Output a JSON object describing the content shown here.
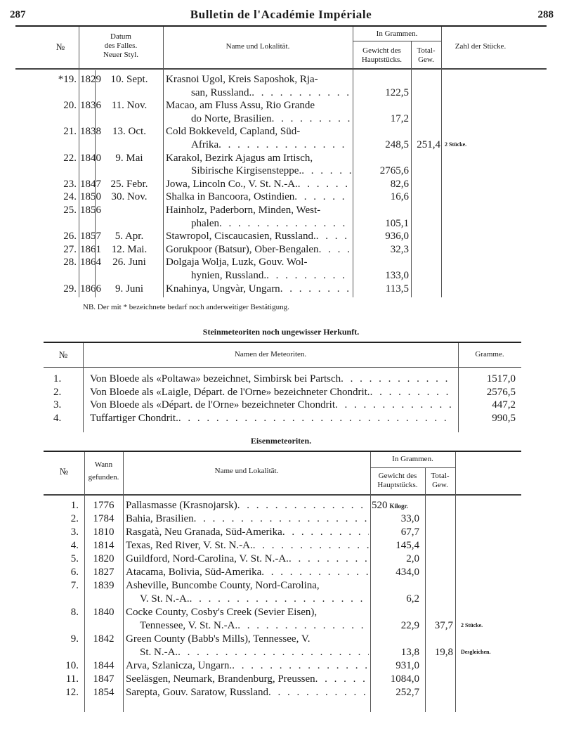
{
  "header": {
    "page_left": "287",
    "title": "Bulletin de l'Académie Impériale",
    "page_right": "288"
  },
  "table1": {
    "headers": {
      "no": "№",
      "date_l1": "Datum",
      "date_l2": "des Falles.",
      "date_l3": "Neuer Styl.",
      "name": "Name und Lokalität.",
      "grams_group": "In Grammen.",
      "main_l1": "Gewicht des",
      "main_l2": "Hauptstücks.",
      "total_l1": "Total-",
      "total_l2": "Gew.",
      "count": "Zahl der Stücke."
    },
    "rows": [
      {
        "no": "*19.",
        "year": "1829",
        "date": "10. Sept.",
        "name": [
          "Krasnoi Ugol, Kreis Saposhok, Rja-",
          "san, Russland."
        ],
        "weight": "122,5",
        "total": "",
        "count": ""
      },
      {
        "no": "20.",
        "year": "1836",
        "date": "11. Nov.",
        "name": [
          "Macao, am Fluss Assu, Rio Grande",
          "do Norte, Brasilien"
        ],
        "weight": "17,2",
        "total": "",
        "count": ""
      },
      {
        "no": "21.",
        "year": "1838",
        "date": "13. Oct.",
        "name": [
          "Cold Bokkeveld, Capland, Süd-",
          "Afrika"
        ],
        "weight": "248,5",
        "total": "251,4",
        "count": "2 Stücke."
      },
      {
        "no": "22.",
        "year": "1840",
        "date": "9. Mai",
        "name": [
          "Karakol, Bezirk Ajagus am Irtisch,",
          "Sibirische Kirgisensteppe."
        ],
        "weight": "2765,6",
        "total": "",
        "count": ""
      },
      {
        "no": "23.",
        "year": "1847",
        "date": "25. Febr.",
        "name": [
          "Jowa, Lincoln Co., V. St. N.-A."
        ],
        "weight": "82,6",
        "total": "",
        "count": ""
      },
      {
        "no": "24.",
        "year": "1850",
        "date": "30. Nov.",
        "name": [
          "Shalka in Bancoora, Ostindien"
        ],
        "weight": "16,6",
        "total": "",
        "count": ""
      },
      {
        "no": "25.",
        "year": "1856",
        "date": "",
        "name": [
          "Hainholz, Paderborn, Minden, West-",
          "phalen"
        ],
        "weight": "105,1",
        "total": "",
        "count": ""
      },
      {
        "no": "26.",
        "year": "1857",
        "date": "5. Apr.",
        "name": [
          "Stawropol, Ciscaucasien, Russland."
        ],
        "weight": "936,0",
        "total": "",
        "count": ""
      },
      {
        "no": "27.",
        "year": "1861",
        "date": "12. Mai.",
        "name": [
          "Gorukpoor (Batsur), Ober-Bengalen"
        ],
        "weight": "32,3",
        "total": "",
        "count": ""
      },
      {
        "no": "28.",
        "year": "1864",
        "date": "26. Juni",
        "name": [
          "Dolgaja Wolja, Luzk, Gouv. Wol-",
          "hynien, Russland."
        ],
        "weight": "133,0",
        "total": "",
        "count": ""
      },
      {
        "no": "29.",
        "year": "1866",
        "date": "9. Juni",
        "name": [
          "Knahinya, Ungvàr, Ungarn"
        ],
        "weight": "113,5",
        "total": "",
        "count": ""
      }
    ],
    "note": "NB. Der mit * bezeichnete bedarf noch anderweitiger Bestätigung."
  },
  "section2": {
    "title": "Steinmeteoriten noch ungewisser Herkunft.",
    "headers": {
      "no": "№",
      "name": "Namen der Meteoriten.",
      "grams": "Gramme."
    },
    "rows": [
      {
        "no": "1.",
        "name": "Von Bloede als «Poltawa» bezeichnet, Simbirsk bei Partsch",
        "grams": "1517,0"
      },
      {
        "no": "2.",
        "name": "Von Bloede als «Laigle, Départ. de l'Orne» bezeichneter Chondrit.",
        "grams": "2576,5"
      },
      {
        "no": "3.",
        "name": "Von Bloede als «Départ. de l'Orne» bezeichneter Chondrit",
        "grams": "447,2"
      },
      {
        "no": "4.",
        "name": "Tuffartiger Chondrit.",
        "grams": "990,5"
      }
    ]
  },
  "section3": {
    "title": "Eisenmeteoriten.",
    "headers": {
      "no": "№",
      "found_l1": "Wann",
      "found_l2": "gefunden.",
      "name": "Name und Lokalität.",
      "grams_group": "In Grammen.",
      "main_l1": "Gewicht des",
      "main_l2": "Hauptstücks.",
      "total_l1": "Total-",
      "total_l2": "Gew."
    },
    "rows": [
      {
        "no": "1.",
        "year": "1776",
        "name": [
          "Pallasmasse (Krasnojarsk)"
        ],
        "weight": "520",
        "unit": "Kilogr.",
        "total": "",
        "count": ""
      },
      {
        "no": "2.",
        "year": "1784",
        "name": [
          "Bahia, Brasilien"
        ],
        "weight": "33,0",
        "total": "",
        "count": ""
      },
      {
        "no": "3.",
        "year": "1810",
        "name": [
          "Rasgatà, Neu Granada, Süd-Amerika"
        ],
        "weight": "67,7",
        "total": "",
        "count": ""
      },
      {
        "no": "4.",
        "year": "1814",
        "name": [
          "Texas, Red River, V. St. N.-A."
        ],
        "weight": "145,4",
        "total": "",
        "count": ""
      },
      {
        "no": "5.",
        "year": "1820",
        "name": [
          "Guildford, Nord-Carolina, V. St. N.-A."
        ],
        "weight": "2,0",
        "total": "",
        "count": ""
      },
      {
        "no": "6.",
        "year": "1827",
        "name": [
          "Atacama, Bolivia, Süd-Amerika"
        ],
        "weight": "434,0",
        "total": "",
        "count": ""
      },
      {
        "no": "7.",
        "year": "1839",
        "name": [
          "Asheville, Buncombe County, Nord-Carolina,",
          "V. St. N.-A."
        ],
        "weight": "6,2",
        "total": "",
        "count": ""
      },
      {
        "no": "8.",
        "year": "1840",
        "name": [
          "Cocke County, Cosby's Creek (Sevier Eisen),",
          "Tennessee, V. St. N.-A."
        ],
        "weight": "22,9",
        "total": "37,7",
        "count": "2 Stücke."
      },
      {
        "no": "9.",
        "year": "1842",
        "name": [
          "Green County (Babb's Mills), Tennessee, V.",
          "St. N.-A."
        ],
        "weight": "13,8",
        "total": "19,8",
        "count": "Desgleichen."
      },
      {
        "no": "10.",
        "year": "1844",
        "name": [
          "Arva, Szlanicza, Ungarn."
        ],
        "weight": "931,0",
        "total": "",
        "count": ""
      },
      {
        "no": "11.",
        "year": "1847",
        "name": [
          "Seeläsgen, Neumark, Brandenburg, Preussen"
        ],
        "weight": "1084,0",
        "total": "",
        "count": ""
      },
      {
        "no": "12.",
        "year": "1854",
        "name": [
          "Sarepta, Gouv. Saratow, Russland"
        ],
        "weight": "252,7",
        "total": "",
        "count": ""
      }
    ]
  }
}
